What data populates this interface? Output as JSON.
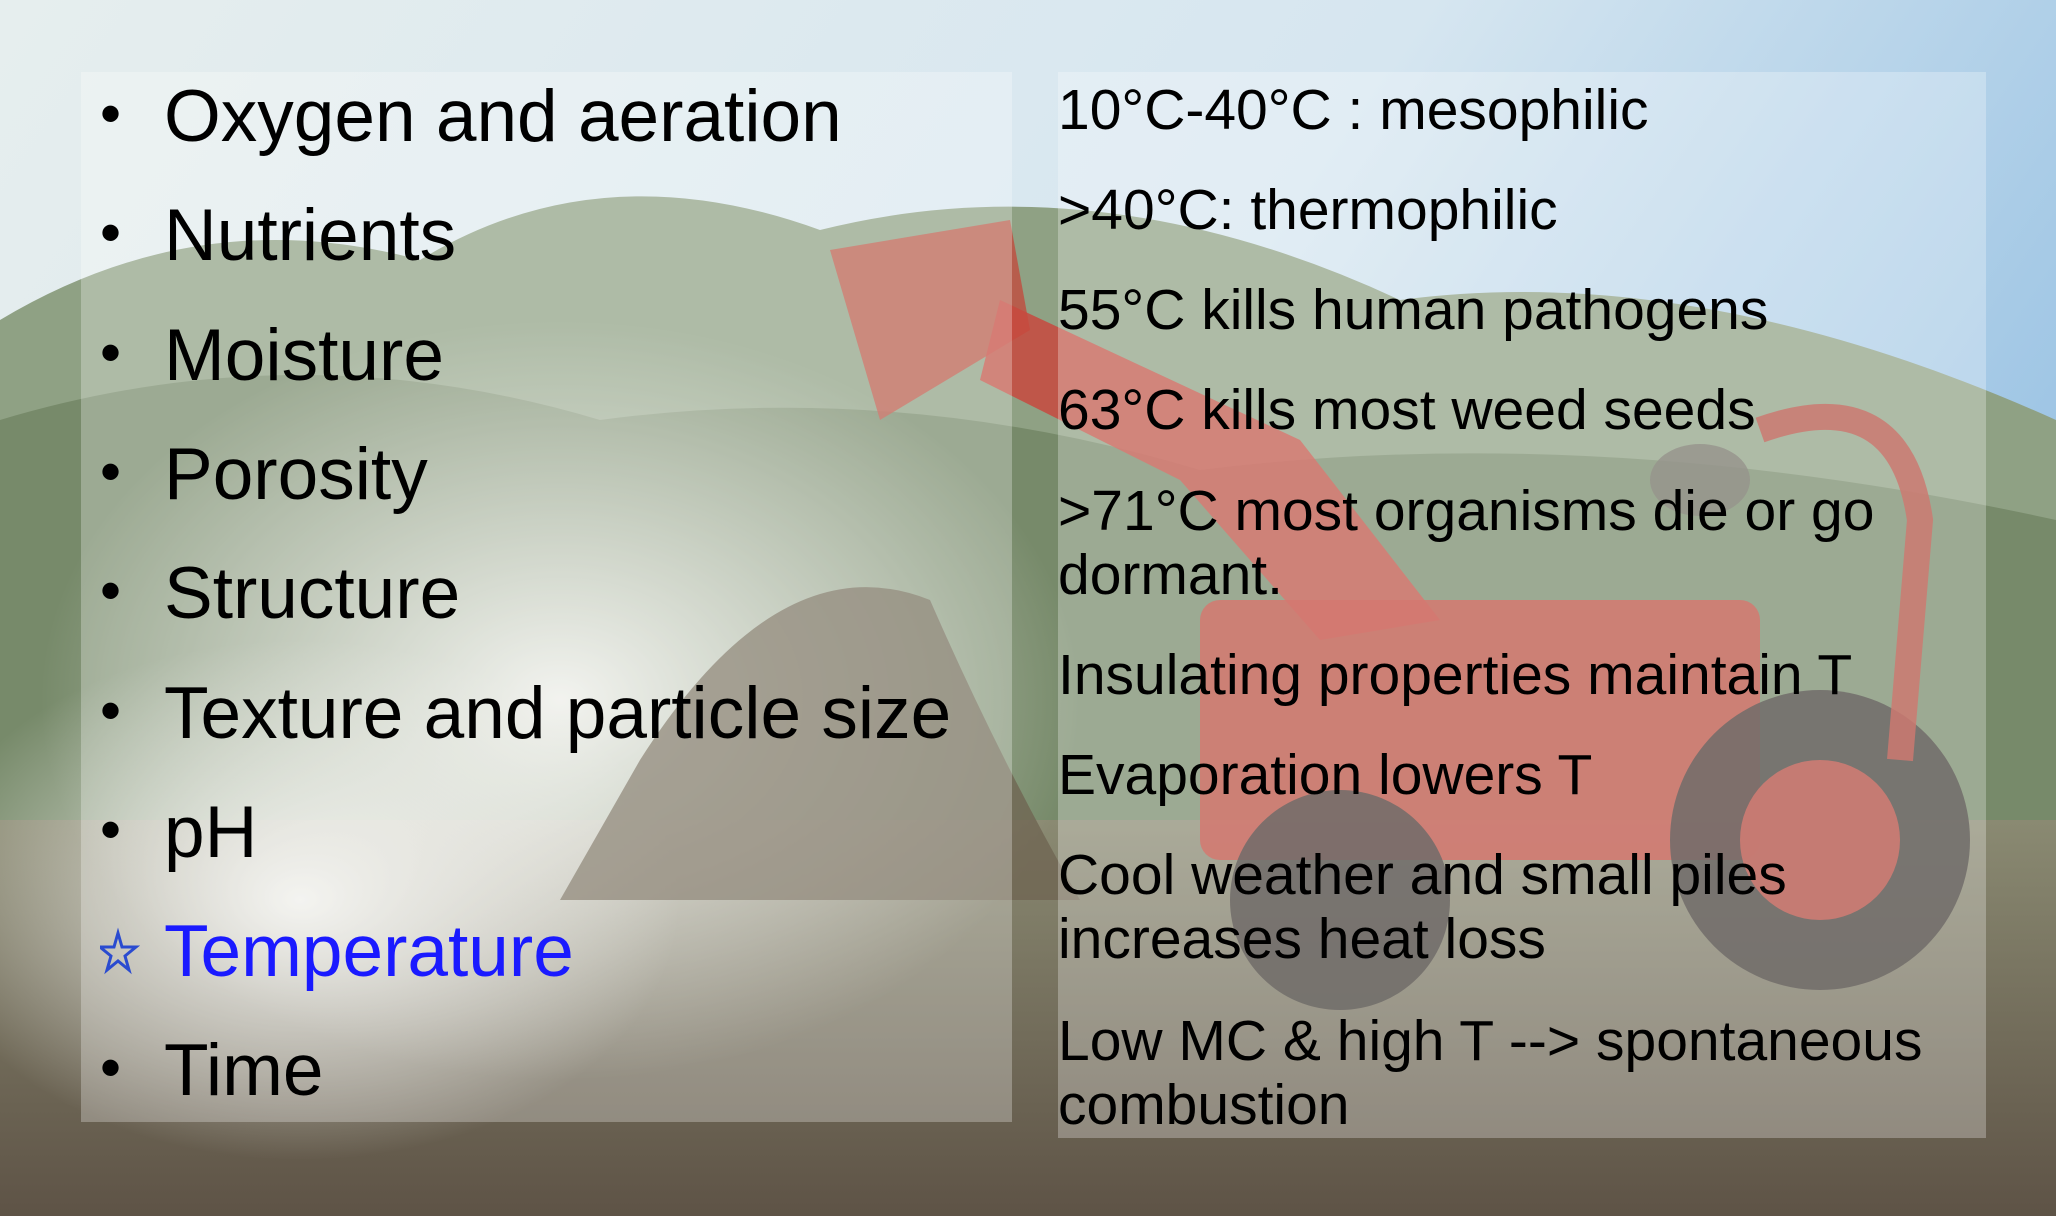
{
  "left_list": {
    "items": [
      "Oxygen and aeration",
      "Nutrients",
      "Moisture",
      "Porosity",
      "Structure",
      "Texture and particle size",
      "pH",
      "Temperature",
      "Time"
    ]
  },
  "right_list": {
    "items": [
      "10°C-40°C : mesophilic",
      ">40°C: thermophilic",
      "55°C kills human pathogens",
      "63°C kills most weed seeds",
      ">71°C most organisms die or go dormant.",
      "Insulating properties maintain T",
      "Evaporation lowers T",
      "Cool weather and small piles increases heat loss",
      "Low MC & high T --> spontaneous combustion"
    ]
  }
}
